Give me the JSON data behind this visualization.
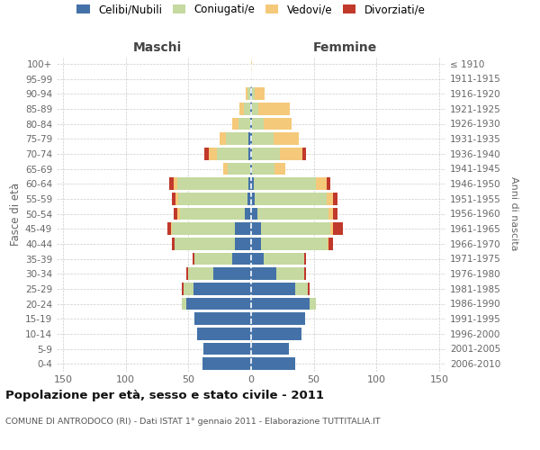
{
  "age_groups": [
    "0-4",
    "5-9",
    "10-14",
    "15-19",
    "20-24",
    "25-29",
    "30-34",
    "35-39",
    "40-44",
    "45-49",
    "50-54",
    "55-59",
    "60-64",
    "65-69",
    "70-74",
    "75-79",
    "80-84",
    "85-89",
    "90-94",
    "95-99",
    "100+"
  ],
  "birth_years": [
    "2006-2010",
    "2001-2005",
    "1996-2000",
    "1991-1995",
    "1986-1990",
    "1981-1985",
    "1976-1980",
    "1971-1975",
    "1966-1970",
    "1961-1965",
    "1956-1960",
    "1951-1955",
    "1946-1950",
    "1941-1945",
    "1936-1940",
    "1931-1935",
    "1926-1930",
    "1921-1925",
    "1916-1920",
    "1911-1915",
    "≤ 1910"
  ],
  "males": {
    "celibe": [
      39,
      38,
      43,
      45,
      52,
      46,
      30,
      15,
      13,
      13,
      5,
      3,
      2,
      1,
      2,
      2,
      1,
      1,
      1,
      0,
      0
    ],
    "coniugato": [
      0,
      0,
      0,
      0,
      3,
      8,
      20,
      30,
      48,
      50,
      52,
      55,
      57,
      18,
      25,
      18,
      9,
      5,
      2,
      0,
      0
    ],
    "vedovo": [
      0,
      0,
      0,
      0,
      0,
      0,
      0,
      0,
      0,
      1,
      2,
      2,
      3,
      3,
      7,
      5,
      5,
      3,
      1,
      0,
      0
    ],
    "divorziato": [
      0,
      0,
      0,
      0,
      0,
      1,
      2,
      2,
      2,
      3,
      3,
      3,
      3,
      0,
      3,
      0,
      0,
      0,
      0,
      0,
      0
    ]
  },
  "females": {
    "nubile": [
      35,
      30,
      40,
      43,
      47,
      35,
      20,
      10,
      8,
      8,
      5,
      3,
      2,
      1,
      1,
      1,
      1,
      1,
      1,
      0,
      0
    ],
    "coniugata": [
      0,
      0,
      0,
      0,
      5,
      10,
      22,
      32,
      53,
      55,
      57,
      57,
      50,
      18,
      22,
      17,
      9,
      5,
      2,
      0,
      0
    ],
    "vedova": [
      0,
      0,
      0,
      0,
      0,
      0,
      0,
      0,
      1,
      2,
      3,
      5,
      8,
      8,
      18,
      20,
      22,
      25,
      8,
      0,
      1
    ],
    "divorziata": [
      0,
      0,
      0,
      0,
      0,
      2,
      2,
      2,
      3,
      8,
      4,
      4,
      3,
      0,
      3,
      0,
      0,
      0,
      0,
      0,
      0
    ]
  },
  "colors": {
    "celibe": "#4472a8",
    "coniugato": "#c5d9a0",
    "vedovo": "#f5c97a",
    "divorziato": "#c0392b"
  },
  "title": "Popolazione per età, sesso e stato civile - 2011",
  "subtitle": "COMUNE DI ANTRODOCO (RI) - Dati ISTAT 1° gennaio 2011 - Elaborazione TUTTITALIA.IT",
  "label_maschi": "Maschi",
  "label_femmine": "Femmine",
  "ylabel_left": "Fasce di età",
  "ylabel_right": "Anni di nascita",
  "legend_labels": [
    "Celibi/Nubili",
    "Coniugati/e",
    "Vedovi/e",
    "Divorziati/e"
  ],
  "xlim": 155,
  "bg_color": "#ffffff",
  "grid_color": "#cccccc",
  "bar_height": 0.82
}
